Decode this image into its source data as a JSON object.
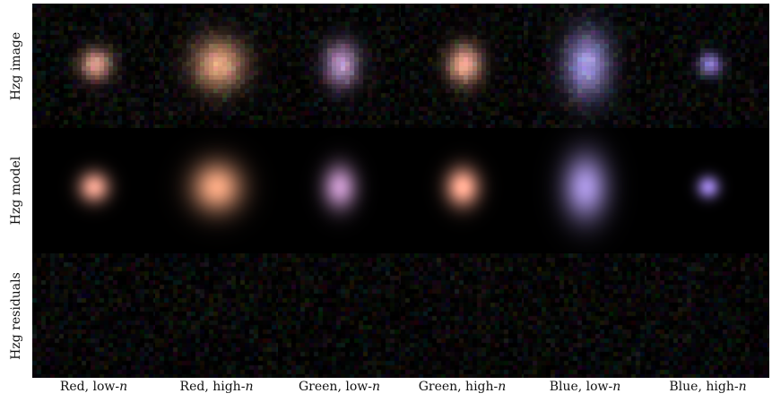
{
  "rows": [
    {
      "key": "image",
      "label": "Hzg image"
    },
    {
      "key": "model",
      "label": "Hzg model"
    },
    {
      "key": "residuals",
      "label": "Hzg residuals"
    }
  ],
  "columns": [
    {
      "label_main": "Red, low-",
      "label_var": "n",
      "color": "#d99a88",
      "elong": 1.0,
      "size": 0.55
    },
    {
      "label_main": "Red, high-",
      "label_var": "n",
      "color": "#e0a07c",
      "elong": 1.0,
      "size": 0.9
    },
    {
      "label_main": "Green, low-",
      "label_var": "n",
      "color": "#b48fc0",
      "elong": 1.3,
      "size": 0.6
    },
    {
      "label_main": "Green, high-",
      "label_var": "n",
      "color": "#f0a890",
      "elong": 1.15,
      "size": 0.6
    },
    {
      "label_main": "Blue, low-",
      "label_var": "n",
      "color": "#9b8fd8",
      "elong": 1.45,
      "size": 0.8
    },
    {
      "label_main": "Blue, high-",
      "label_var": "n",
      "color": "#8a78d0",
      "elong": 1.0,
      "size": 0.4
    }
  ]
}
